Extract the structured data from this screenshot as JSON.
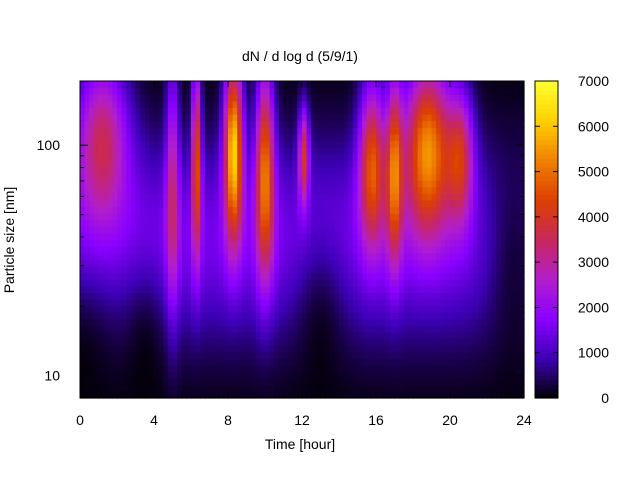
{
  "chart_data": {
    "type": "heatmap",
    "title": "dN / d log d (5/9/1)",
    "xlabel": "Time [hour]",
    "ylabel": "Particle size [nm]",
    "x_range": [
      0,
      24
    ],
    "x_ticks": [
      0,
      4,
      8,
      12,
      16,
      20,
      24
    ],
    "y_scale": "log",
    "y_range": [
      8,
      190
    ],
    "y_ticks": [
      {
        "value": 10,
        "label": "10"
      },
      {
        "value": 100,
        "label": "100"
      }
    ],
    "colorbar": {
      "range": [
        0,
        7000
      ],
      "ticks": [
        0,
        1000,
        2000,
        3000,
        4000,
        5000,
        6000,
        7000
      ],
      "palette": [
        "#000000",
        "#3c00b4",
        "#8a00ff",
        "#b21ecc",
        "#c8285a",
        "#dc4000",
        "#f08000",
        "#ffd000",
        "#ffff30"
      ]
    },
    "background_level": 1500,
    "features": [
      {
        "time": 1.2,
        "size": 110,
        "peak": 3000,
        "sigma_time": 1.0,
        "sigma_log_size": 0.25
      },
      {
        "time": 5.0,
        "size": 70,
        "peak": 2300,
        "sigma_time": 0.25,
        "sigma_log_size": 0.4
      },
      {
        "time": 6.3,
        "size": 90,
        "peak": 3900,
        "sigma_time": 0.18,
        "sigma_log_size": 0.3
      },
      {
        "time": 8.3,
        "size": 100,
        "peak": 5600,
        "sigma_time": 0.35,
        "sigma_log_size": 0.28
      },
      {
        "time": 10.0,
        "size": 80,
        "peak": 4300,
        "sigma_time": 0.35,
        "sigma_log_size": 0.32
      },
      {
        "time": 12.1,
        "size": 90,
        "peak": 3300,
        "sigma_time": 0.2,
        "sigma_log_size": 0.15
      },
      {
        "time": 15.8,
        "size": 85,
        "peak": 3900,
        "sigma_time": 0.5,
        "sigma_log_size": 0.25
      },
      {
        "time": 17.0,
        "size": 80,
        "peak": 3800,
        "sigma_time": 0.3,
        "sigma_log_size": 0.28
      },
      {
        "time": 18.8,
        "size": 100,
        "peak": 4800,
        "sigma_time": 0.9,
        "sigma_log_size": 0.26
      },
      {
        "time": 20.6,
        "size": 90,
        "peak": 3000,
        "sigma_time": 0.5,
        "sigma_log_size": 0.2
      }
    ],
    "low_regions": [
      {
        "time": 0.0,
        "size": 12,
        "sigma_time": 1.5,
        "sigma_log_size": 0.25
      },
      {
        "time": 3.5,
        "size": 12,
        "sigma_time": 0.8,
        "sigma_log_size": 0.25
      },
      {
        "time": 13.0,
        "size": 15,
        "sigma_time": 1.0,
        "sigma_log_size": 0.3
      },
      {
        "time": 23.5,
        "size": 30,
        "sigma_time": 1.2,
        "sigma_log_size": 0.5
      }
    ]
  }
}
